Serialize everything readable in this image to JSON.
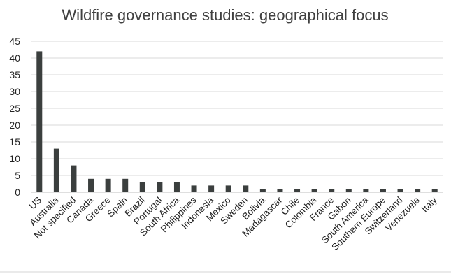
{
  "chart_data": {
    "type": "bar",
    "title": "Wildfire governance studies: geographical focus",
    "xlabel": "",
    "ylabel": "",
    "ylim": [
      0,
      45
    ],
    "yticks": [
      0,
      5,
      10,
      15,
      20,
      25,
      30,
      35,
      40,
      45
    ],
    "grid": true,
    "legend": "none",
    "bar_color": "#3b3f3e",
    "categories": [
      "US",
      "Australia",
      "Not specified",
      "Canada",
      "Greece",
      "Spain",
      "Brazil",
      "Portugal",
      "South Africa",
      "Philippines",
      "Indonesia",
      "Mexico",
      "Sweden",
      "Bolivia",
      "Madagascar",
      "Chile",
      "Colombia",
      "France",
      "Gabon",
      "South America",
      "Southern Europe",
      "Switzerland",
      "Venezuela",
      "Italy"
    ],
    "values": [
      42,
      13,
      8,
      4,
      4,
      4,
      3,
      3,
      3,
      2,
      2,
      2,
      2,
      1,
      1,
      1,
      1,
      1,
      1,
      1,
      1,
      1,
      1,
      1
    ]
  }
}
